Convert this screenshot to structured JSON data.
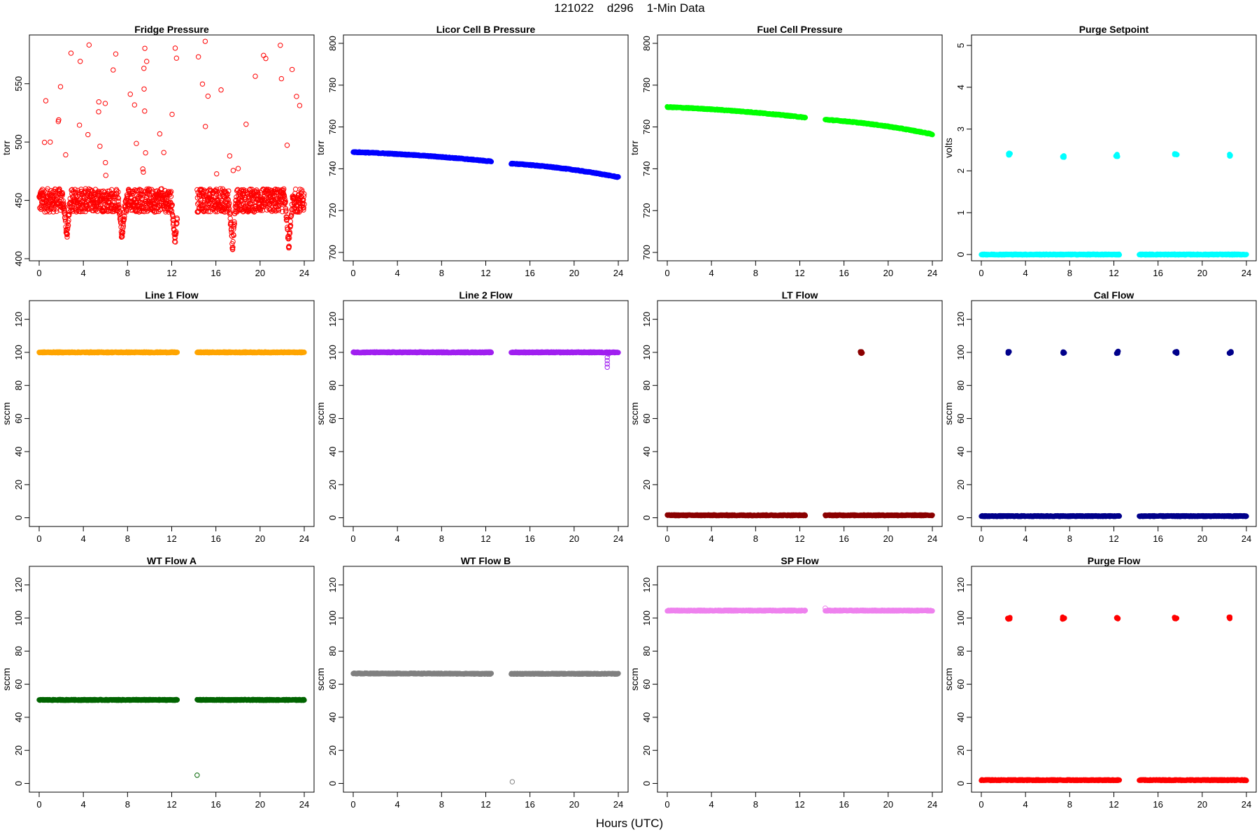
{
  "page": {
    "title": "121022    d296    1-Min Data",
    "xlabel": "Hours (UTC)"
  },
  "chart_data": [
    {
      "type": "scatter",
      "title": "Fridge Pressure",
      "ylabel": "torr",
      "xlim": [
        0,
        24
      ],
      "ylim": [
        400,
        590
      ],
      "xticks": [
        0,
        4,
        8,
        12,
        16,
        20,
        24
      ],
      "yticks": [
        400,
        450,
        500,
        550
      ],
      "color": "#ff0000",
      "segments": [
        {
          "start": 0.0,
          "end": 12.5
        },
        {
          "start": 14.3,
          "end": 24.0
        }
      ],
      "baseline": 450,
      "dips": [
        {
          "x": 2.5,
          "min": 415
        },
        {
          "x": 7.5,
          "min": 413
        },
        {
          "x": 12.3,
          "min": 410
        },
        {
          "x": 17.5,
          "min": 405
        },
        {
          "x": 22.6,
          "min": 405
        }
      ],
      "spikes_range": [
        470,
        588
      ]
    },
    {
      "type": "scatter",
      "title": "Licor Cell B Pressure",
      "ylabel": "torr",
      "xlim": [
        0,
        24
      ],
      "ylim": [
        697,
        803
      ],
      "xticks": [
        0,
        4,
        8,
        12,
        16,
        20,
        24
      ],
      "yticks": [
        700,
        720,
        740,
        760,
        780,
        800
      ],
      "color": "#0000ff",
      "segments": [
        {
          "start": 0.0,
          "end": 12.5,
          "y_start": 748.0,
          "y_end": 743.5
        },
        {
          "start": 14.3,
          "end": 24.0,
          "y_start": 742.5,
          "y_end": 736.0
        }
      ]
    },
    {
      "type": "scatter",
      "title": "Fuel Cell Pressure",
      "ylabel": "torr",
      "xlim": [
        0,
        24
      ],
      "ylim": [
        697,
        803
      ],
      "xticks": [
        0,
        4,
        8,
        12,
        16,
        20,
        24
      ],
      "yticks": [
        700,
        720,
        740,
        760,
        780,
        800
      ],
      "color": "#00ff00",
      "segments": [
        {
          "start": 0.0,
          "end": 12.5,
          "y_start": 769.5,
          "y_end": 764.5
        },
        {
          "start": 14.3,
          "end": 24.0,
          "y_start": 763.5,
          "y_end": 756.5
        }
      ]
    },
    {
      "type": "scatter",
      "title": "Purge Setpoint",
      "ylabel": "volts",
      "xlim": [
        0,
        24
      ],
      "ylim": [
        -0.1,
        5.2
      ],
      "xticks": [
        0,
        4,
        8,
        12,
        16,
        20,
        24
      ],
      "yticks": [
        0,
        1,
        2,
        3,
        4,
        5
      ],
      "color": "#00ffff",
      "segments": [
        {
          "start": 0.0,
          "end": 12.5,
          "y_start": 0,
          "y_end": 0
        },
        {
          "start": 14.3,
          "end": 24.0,
          "y_start": 0,
          "y_end": 0
        }
      ],
      "events": [
        {
          "x": 2.5,
          "y": 2.4
        },
        {
          "x": 7.4,
          "y": 2.35
        },
        {
          "x": 12.3,
          "y": 2.37
        },
        {
          "x": 17.6,
          "y": 2.4
        },
        {
          "x": 22.5,
          "y": 2.37
        }
      ]
    },
    {
      "type": "scatter",
      "title": "Line 1 Flow",
      "ylabel": "sccm",
      "xlim": [
        0,
        24
      ],
      "ylim": [
        -4,
        130
      ],
      "xticks": [
        0,
        4,
        8,
        12,
        16,
        20,
        24
      ],
      "yticks": [
        0,
        20,
        40,
        60,
        80,
        100,
        120
      ],
      "color": "#ffa500",
      "segments": [
        {
          "start": 0.0,
          "end": 12.5,
          "y_start": 100,
          "y_end": 100
        },
        {
          "start": 14.3,
          "end": 24.0,
          "y_start": 100,
          "y_end": 100
        }
      ]
    },
    {
      "type": "scatter",
      "title": "Line 2 Flow",
      "ylabel": "sccm",
      "xlim": [
        0,
        24
      ],
      "ylim": [
        -4,
        130
      ],
      "xticks": [
        0,
        4,
        8,
        12,
        16,
        20,
        24
      ],
      "yticks": [
        0,
        20,
        40,
        60,
        80,
        100,
        120
      ],
      "color": "#a020f0",
      "segments": [
        {
          "start": 0.0,
          "end": 12.5,
          "y_start": 100,
          "y_end": 100
        },
        {
          "start": 14.3,
          "end": 24.0,
          "y_start": 100,
          "y_end": 100
        }
      ],
      "outliers": [
        {
          "x": 23.0,
          "y": 91
        },
        {
          "x": 23.0,
          "y": 93
        },
        {
          "x": 23.0,
          "y": 95
        },
        {
          "x": 23.0,
          "y": 97
        },
        {
          "x": 23.1,
          "y": 99
        }
      ]
    },
    {
      "type": "scatter",
      "title": "LT Flow",
      "ylabel": "sccm",
      "xlim": [
        0,
        24
      ],
      "ylim": [
        -4,
        130
      ],
      "xticks": [
        0,
        4,
        8,
        12,
        16,
        20,
        24
      ],
      "yticks": [
        0,
        20,
        40,
        60,
        80,
        100,
        120
      ],
      "color": "#8b0000",
      "segments": [
        {
          "start": 0.0,
          "end": 12.5,
          "y_start": 1.5,
          "y_end": 1.5
        },
        {
          "start": 14.3,
          "end": 24.0,
          "y_start": 1.5,
          "y_end": 1.5
        }
      ],
      "events": [
        {
          "x": 17.6,
          "y": 100
        }
      ]
    },
    {
      "type": "scatter",
      "title": "Cal Flow",
      "ylabel": "sccm",
      "xlim": [
        0,
        24
      ],
      "ylim": [
        -4,
        130
      ],
      "xticks": [
        0,
        4,
        8,
        12,
        16,
        20,
        24
      ],
      "yticks": [
        0,
        20,
        40,
        60,
        80,
        100,
        120
      ],
      "color": "#00008b",
      "segments": [
        {
          "start": 0.0,
          "end": 12.5,
          "y_start": 1,
          "y_end": 1
        },
        {
          "start": 14.3,
          "end": 24.0,
          "y_start": 1,
          "y_end": 1
        }
      ],
      "events": [
        {
          "x": 2.5,
          "y": 100
        },
        {
          "x": 7.4,
          "y": 100
        },
        {
          "x": 12.3,
          "y": 100
        },
        {
          "x": 17.6,
          "y": 100
        },
        {
          "x": 22.5,
          "y": 100
        }
      ]
    },
    {
      "type": "scatter",
      "title": "WT Flow A",
      "ylabel": "sccm",
      "xlim": [
        0,
        24
      ],
      "ylim": [
        -4,
        130
      ],
      "xticks": [
        0,
        4,
        8,
        12,
        16,
        20,
        24
      ],
      "yticks": [
        0,
        20,
        40,
        60,
        80,
        100,
        120
      ],
      "color": "#006400",
      "segments": [
        {
          "start": 0.0,
          "end": 12.5,
          "y_start": 50.5,
          "y_end": 50.5
        },
        {
          "start": 14.3,
          "end": 24.0,
          "y_start": 50.5,
          "y_end": 50.5
        }
      ],
      "outliers": [
        {
          "x": 14.3,
          "y": 5
        }
      ]
    },
    {
      "type": "scatter",
      "title": "WT Flow B",
      "ylabel": "sccm",
      "xlim": [
        0,
        24
      ],
      "ylim": [
        -4,
        130
      ],
      "xticks": [
        0,
        4,
        8,
        12,
        16,
        20,
        24
      ],
      "yticks": [
        0,
        20,
        40,
        60,
        80,
        100,
        120
      ],
      "color": "#808080",
      "segments": [
        {
          "start": 0.0,
          "end": 12.5,
          "y_start": 66.5,
          "y_end": 66.3
        },
        {
          "start": 14.3,
          "end": 24.0,
          "y_start": 66.3,
          "y_end": 66.3
        }
      ],
      "outliers": [
        {
          "x": 14.4,
          "y": 1
        }
      ]
    },
    {
      "type": "scatter",
      "title": "SP Flow",
      "ylabel": "sccm",
      "xlim": [
        0,
        24
      ],
      "ylim": [
        -4,
        130
      ],
      "xticks": [
        0,
        4,
        8,
        12,
        16,
        20,
        24
      ],
      "yticks": [
        0,
        20,
        40,
        60,
        80,
        100,
        120
      ],
      "color": "#ee82ee",
      "segments": [
        {
          "start": 0.0,
          "end": 12.5,
          "y_start": 104.5,
          "y_end": 104.5
        },
        {
          "start": 14.3,
          "end": 24.0,
          "y_start": 104.5,
          "y_end": 104.5
        }
      ],
      "outliers": [
        {
          "x": 14.3,
          "y": 106
        }
      ]
    },
    {
      "type": "scatter",
      "title": "Purge Flow",
      "ylabel": "sccm",
      "xlim": [
        0,
        24
      ],
      "ylim": [
        -4,
        130
      ],
      "xticks": [
        0,
        4,
        8,
        12,
        16,
        20,
        24
      ],
      "yticks": [
        0,
        20,
        40,
        60,
        80,
        100,
        120
      ],
      "color": "#ff0000",
      "segments": [
        {
          "start": 0.0,
          "end": 12.5,
          "y_start": 2,
          "y_end": 2
        },
        {
          "start": 14.3,
          "end": 24.0,
          "y_start": 2,
          "y_end": 2
        }
      ],
      "events": [
        {
          "x": 2.5,
          "y": 100
        },
        {
          "x": 7.4,
          "y": 100
        },
        {
          "x": 12.3,
          "y": 100
        },
        {
          "x": 17.6,
          "y": 100
        },
        {
          "x": 22.5,
          "y": 100
        }
      ]
    }
  ]
}
